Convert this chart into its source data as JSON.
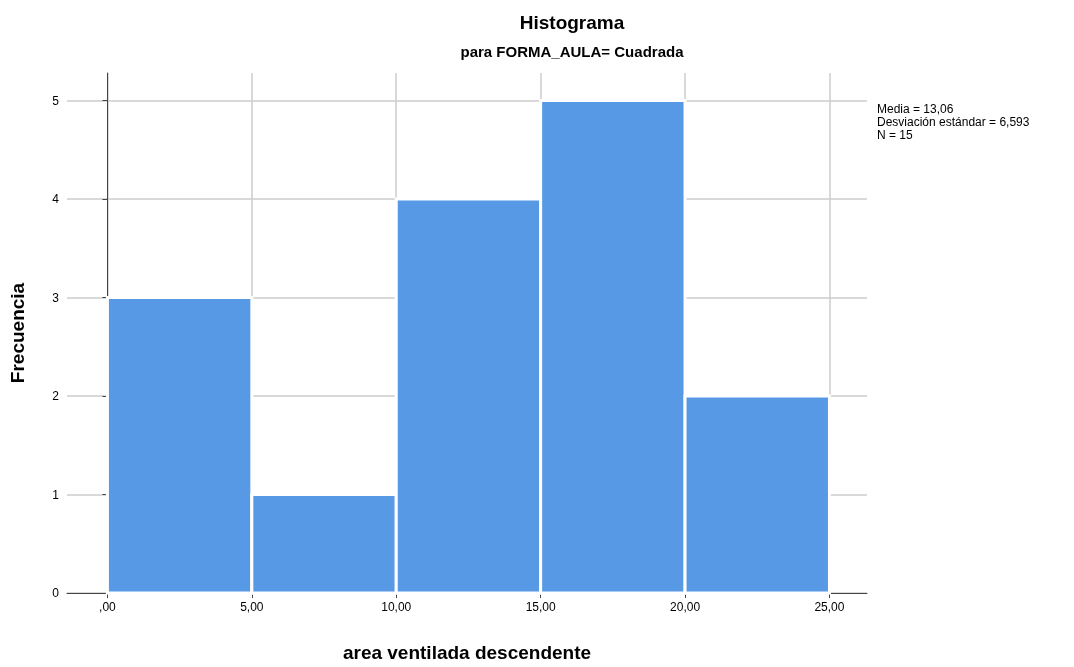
{
  "chart_data": {
    "type": "histogram",
    "title": "Histograma",
    "subtitle": "para FORMA_AULA= Cuadrada",
    "xlabel": "area ventilada descendente",
    "ylabel": "Frecuencia",
    "bins": [
      0,
      5,
      10,
      15,
      20,
      25
    ],
    "values": [
      3,
      1,
      4,
      5,
      2
    ],
    "color": "#5799e5",
    "xlim": [
      -1.4,
      26.3
    ],
    "xticks": [
      {
        "value": 0,
        "label": ",00"
      },
      {
        "value": 5,
        "label": "5,00"
      },
      {
        "value": 10,
        "label": "10,00"
      },
      {
        "value": 15,
        "label": "15,00"
      },
      {
        "value": 20,
        "label": "20,00"
      },
      {
        "value": 25,
        "label": "25,00"
      }
    ],
    "ylim": [
      0,
      5.28
    ],
    "yticks": [
      0,
      1,
      2,
      3,
      4,
      5
    ],
    "grid": true,
    "annotations": [
      "Media = 13,06",
      "Desviación estándar = 6,593",
      "N = 15"
    ]
  }
}
